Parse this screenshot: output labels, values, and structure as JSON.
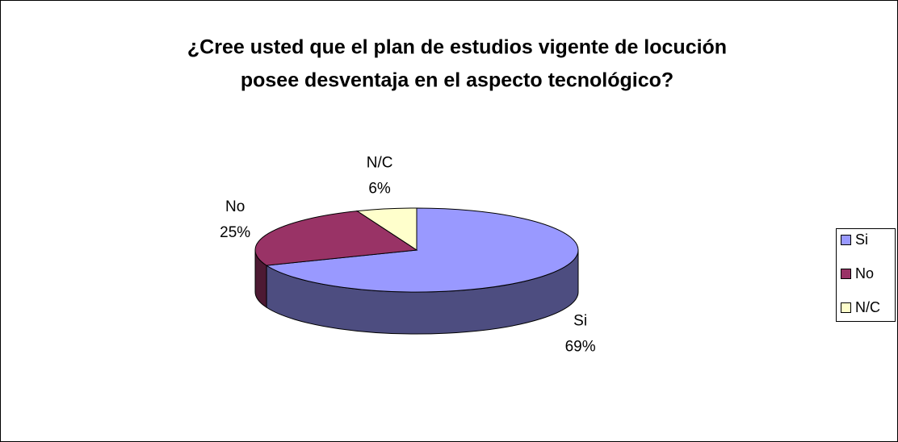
{
  "chart_data": {
    "type": "pie3d",
    "title": [
      "¿Cree usted que el plan de estudios vigente de locución",
      "posee desventaja en el aspecto tecnológico?"
    ],
    "categories": [
      "Si",
      "No",
      "N/C"
    ],
    "values": [
      69,
      25,
      6
    ],
    "value_labels": [
      "69%",
      "25%",
      "6%"
    ],
    "colors": [
      "#9999ff",
      "#993366",
      "#ffffcc"
    ],
    "legend": "right"
  }
}
